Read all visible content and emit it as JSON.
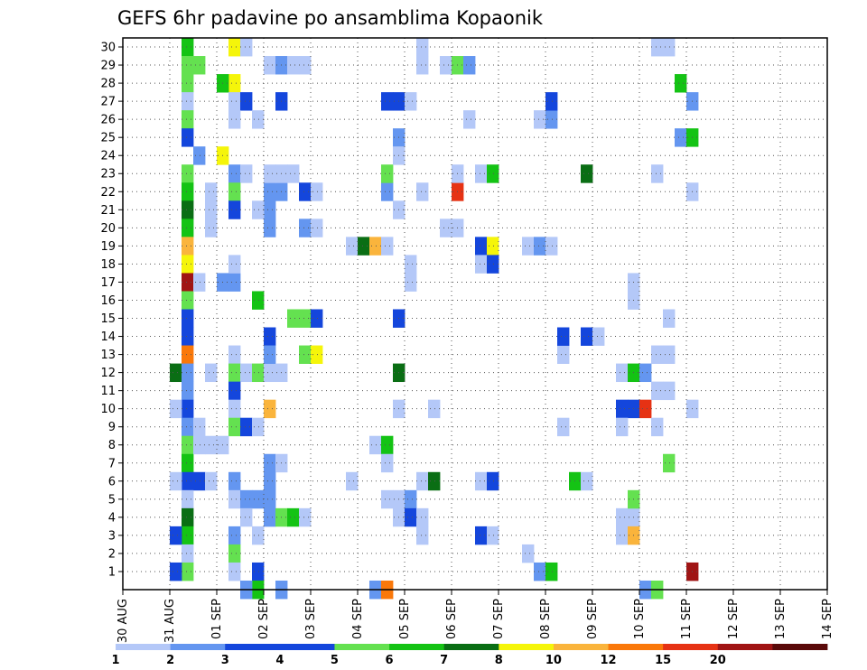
{
  "chart_data": {
    "type": "heatmap",
    "title": "GEFS 6hr padavine po ansamblima Kopaonik",
    "x_tick_labels": [
      "30 AUG",
      "31 AUG",
      "01 SEP",
      "02 SEP",
      "03 SEP",
      "04 SEP",
      "05 SEP",
      "06 SEP",
      "07 SEP",
      "08 SEP",
      "09 SEP",
      "10 SEP",
      "11 SEP",
      "12 SEP",
      "13 SEP",
      "14 SEP"
    ],
    "y_tick_labels": [
      "1",
      "2",
      "3",
      "4",
      "5",
      "6",
      "7",
      "8",
      "9",
      "10",
      "11",
      "12",
      "13",
      "14",
      "15",
      "16",
      "17",
      "18",
      "19",
      "20",
      "21",
      "22",
      "23",
      "24",
      "25",
      "26",
      "27",
      "28",
      "29",
      "30"
    ],
    "grid": true,
    "colorbar": {
      "labels": [
        "1",
        "2",
        "3",
        "4",
        "5",
        "6",
        "7",
        "8",
        "10",
        "12",
        "15",
        "20"
      ],
      "colors": [
        "#b4c8f8",
        "#6496f0",
        "#1446dc",
        "#1446dc",
        "#64e150",
        "#14c314",
        "#0a6e14",
        "#f5f50a",
        "#fab43c",
        "#fa780a",
        "#e63214",
        "#a01414",
        "#5a0a0a"
      ]
    },
    "note": "cells: [time step (6h steps after 30 AUG 00z), member 1-30, color class index 0-12 into colorbar.colors]",
    "cells": [
      [
        5,
        30,
        5
      ],
      [
        5,
        29,
        4
      ],
      [
        6,
        29,
        4
      ],
      [
        5,
        28,
        4
      ],
      [
        5,
        27,
        0
      ],
      [
        5,
        26,
        4
      ],
      [
        5,
        25,
        2
      ],
      [
        5,
        23,
        4
      ],
      [
        5,
        22,
        5
      ],
      [
        5,
        21,
        6
      ],
      [
        5,
        20,
        5
      ],
      [
        5,
        19,
        8
      ],
      [
        5,
        18,
        7
      ],
      [
        5,
        17,
        11
      ],
      [
        5,
        16,
        4
      ],
      [
        5,
        15,
        2
      ],
      [
        5,
        14,
        2
      ],
      [
        5,
        13,
        9
      ],
      [
        4,
        12,
        6
      ],
      [
        5,
        12,
        1
      ],
      [
        5,
        11,
        1
      ],
      [
        5,
        10,
        2
      ],
      [
        4,
        10,
        0
      ],
      [
        5,
        9,
        1
      ],
      [
        5,
        8,
        4
      ],
      [
        5,
        7,
        5
      ],
      [
        5,
        6,
        2
      ],
      [
        4,
        6,
        0
      ],
      [
        6,
        6,
        2
      ],
      [
        7,
        6,
        0
      ],
      [
        5,
        5,
        0
      ],
      [
        5,
        4,
        6
      ],
      [
        5,
        3,
        5
      ],
      [
        4,
        3,
        2
      ],
      [
        5,
        2,
        0
      ],
      [
        5,
        1,
        4
      ],
      [
        4,
        1,
        2
      ],
      [
        9,
        30,
        7
      ],
      [
        10,
        30,
        0
      ],
      [
        9,
        28,
        7
      ],
      [
        8,
        28,
        5
      ],
      [
        9,
        27,
        0
      ],
      [
        10,
        27,
        2
      ],
      [
        9,
        23,
        1
      ],
      [
        10,
        23,
        0
      ],
      [
        9,
        22,
        4
      ],
      [
        9,
        21,
        2
      ],
      [
        9,
        17,
        1
      ],
      [
        9,
        13,
        0
      ],
      [
        9,
        12,
        4
      ],
      [
        10,
        12,
        0
      ],
      [
        9,
        11,
        2
      ],
      [
        9,
        10,
        0
      ],
      [
        9,
        9,
        4
      ],
      [
        10,
        9,
        2
      ],
      [
        9,
        6,
        1
      ],
      [
        9,
        5,
        0
      ],
      [
        10,
        5,
        1
      ],
      [
        9,
        3,
        1
      ],
      [
        9,
        2,
        4
      ],
      [
        9,
        1,
        0
      ],
      [
        9,
        26,
        0
      ],
      [
        6,
        24,
        1
      ],
      [
        8,
        24,
        7
      ],
      [
        9,
        18,
        0
      ],
      [
        8,
        17,
        1
      ],
      [
        6,
        17,
        0
      ],
      [
        7,
        12,
        0
      ],
      [
        7,
        20,
        0
      ],
      [
        7,
        21,
        0
      ],
      [
        7,
        22,
        0
      ],
      [
        6,
        9,
        0
      ],
      [
        6,
        8,
        0
      ],
      [
        7,
        8,
        0
      ],
      [
        8,
        8,
        0
      ],
      [
        11,
        26,
        0
      ],
      [
        11,
        16,
        5
      ],
      [
        11,
        12,
        4
      ],
      [
        12,
        12,
        0
      ],
      [
        11,
        9,
        0
      ],
      [
        11,
        5,
        1
      ],
      [
        11,
        3,
        0
      ],
      [
        11,
        1,
        2
      ],
      [
        11,
        0,
        5
      ],
      [
        10,
        4,
        0
      ],
      [
        12,
        4,
        0
      ],
      [
        10,
        0,
        1
      ],
      [
        12,
        22,
        1
      ],
      [
        13,
        22,
        1
      ],
      [
        12,
        21,
        1
      ],
      [
        11,
        21,
        0
      ],
      [
        12,
        20,
        1
      ],
      [
        12,
        29,
        0
      ],
      [
        13,
        29,
        1
      ],
      [
        14,
        29,
        0
      ],
      [
        15,
        29,
        0
      ],
      [
        13,
        27,
        2
      ],
      [
        12,
        23,
        0
      ],
      [
        13,
        23,
        0
      ],
      [
        14,
        23,
        0
      ],
      [
        12,
        14,
        2
      ],
      [
        12,
        13,
        1
      ],
      [
        13,
        12,
        0
      ],
      [
        12,
        10,
        8
      ],
      [
        12,
        7,
        1
      ],
      [
        13,
        7,
        0
      ],
      [
        12,
        6,
        1
      ],
      [
        12,
        5,
        1
      ],
      [
        12,
        4,
        1
      ],
      [
        13,
        4,
        4
      ],
      [
        14,
        4,
        5
      ],
      [
        15,
        4,
        0
      ],
      [
        13,
        0,
        1
      ],
      [
        15,
        22,
        2
      ],
      [
        16,
        22,
        0
      ],
      [
        15,
        20,
        1
      ],
      [
        16,
        20,
        0
      ],
      [
        15,
        15,
        4
      ],
      [
        16,
        15,
        2
      ],
      [
        15,
        13,
        4
      ],
      [
        16,
        13,
        7
      ],
      [
        14,
        15,
        4
      ],
      [
        19,
        19,
        0
      ],
      [
        20,
        19,
        6
      ],
      [
        21,
        19,
        8
      ],
      [
        22,
        19,
        0
      ],
      [
        19,
        6,
        0
      ],
      [
        21,
        8,
        0
      ],
      [
        22,
        8,
        5
      ],
      [
        22,
        7,
        0
      ],
      [
        22,
        5,
        0
      ],
      [
        23,
        5,
        0
      ],
      [
        24,
        5,
        1
      ],
      [
        23,
        4,
        0
      ],
      [
        22,
        22,
        1
      ],
      [
        22,
        23,
        4
      ],
      [
        23,
        25,
        1
      ],
      [
        23,
        24,
        0
      ],
      [
        23,
        21,
        0
      ],
      [
        23,
        15,
        2
      ],
      [
        24,
        17,
        0
      ],
      [
        24,
        18,
        0
      ],
      [
        23,
        12,
        6
      ],
      [
        23,
        10,
        0
      ],
      [
        23,
        27,
        2
      ],
      [
        22,
        27,
        2
      ],
      [
        24,
        27,
        0
      ],
      [
        21,
        0,
        1
      ],
      [
        22,
        0,
        9
      ],
      [
        25,
        30,
        0
      ],
      [
        25,
        29,
        0
      ],
      [
        25,
        22,
        0
      ],
      [
        26,
        10,
        0
      ],
      [
        25,
        6,
        0
      ],
      [
        26,
        6,
        6
      ],
      [
        24,
        4,
        2
      ],
      [
        25,
        4,
        0
      ],
      [
        25,
        3,
        0
      ],
      [
        27,
        29,
        0
      ],
      [
        28,
        29,
        4
      ],
      [
        29,
        29,
        1
      ],
      [
        28,
        22,
        10
      ],
      [
        28,
        23,
        0
      ],
      [
        27,
        20,
        0
      ],
      [
        28,
        20,
        0
      ],
      [
        29,
        26,
        0
      ],
      [
        30,
        23,
        0
      ],
      [
        31,
        23,
        5
      ],
      [
        30,
        19,
        2
      ],
      [
        31,
        19,
        7
      ],
      [
        30,
        18,
        0
      ],
      [
        31,
        18,
        2
      ],
      [
        30,
        6,
        0
      ],
      [
        31,
        6,
        2
      ],
      [
        30,
        3,
        2
      ],
      [
        31,
        3,
        0
      ],
      [
        34,
        2,
        0
      ],
      [
        34,
        19,
        0
      ],
      [
        35,
        19,
        1
      ],
      [
        36,
        19,
        0
      ],
      [
        35,
        26,
        0
      ],
      [
        36,
        26,
        1
      ],
      [
        35,
        1,
        1
      ],
      [
        36,
        1,
        5
      ],
      [
        37,
        9,
        0
      ],
      [
        37,
        13,
        0
      ],
      [
        36,
        27,
        2
      ],
      [
        37,
        14,
        2
      ],
      [
        39,
        23,
        6
      ],
      [
        38,
        6,
        5
      ],
      [
        39,
        6,
        0
      ],
      [
        39,
        14,
        2
      ],
      [
        40,
        14,
        0
      ],
      [
        42,
        12,
        0
      ],
      [
        43,
        12,
        5
      ],
      [
        44,
        12,
        1
      ],
      [
        42,
        10,
        2
      ],
      [
        43,
        10,
        2
      ],
      [
        44,
        10,
        10
      ],
      [
        42,
        9,
        0
      ],
      [
        42,
        4,
        0
      ],
      [
        43,
        4,
        0
      ],
      [
        42,
        3,
        0
      ],
      [
        43,
        3,
        8
      ],
      [
        43,
        5,
        4
      ],
      [
        43,
        17,
        0
      ],
      [
        43,
        16,
        0
      ],
      [
        44,
        0,
        1
      ],
      [
        45,
        0,
        4
      ],
      [
        45,
        30,
        0
      ],
      [
        46,
        30,
        0
      ],
      [
        45,
        23,
        0
      ],
      [
        46,
        15,
        0
      ],
      [
        45,
        13,
        0
      ],
      [
        46,
        13,
        0
      ],
      [
        45,
        11,
        0
      ],
      [
        46,
        11,
        0
      ],
      [
        45,
        9,
        0
      ],
      [
        46,
        7,
        4
      ],
      [
        47,
        28,
        5
      ],
      [
        48,
        27,
        1
      ],
      [
        47,
        25,
        1
      ],
      [
        48,
        25,
        5
      ],
      [
        48,
        22,
        0
      ],
      [
        48,
        10,
        0
      ],
      [
        48,
        1,
        11
      ]
    ]
  }
}
